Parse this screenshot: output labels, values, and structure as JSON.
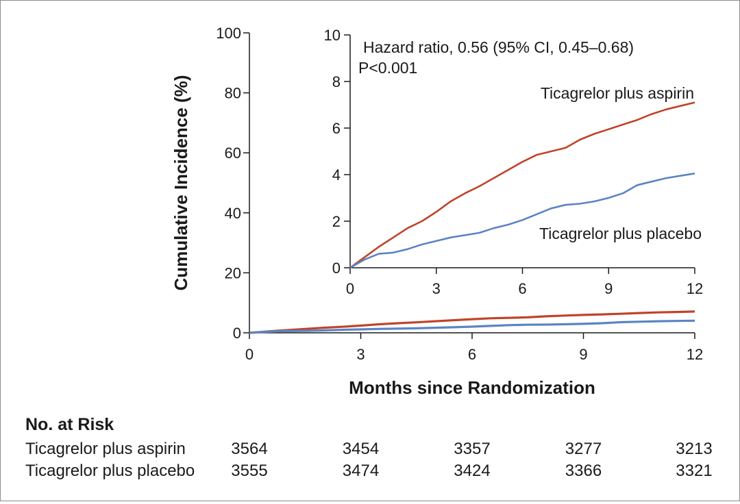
{
  "chart_data": [
    {
      "type": "line",
      "panel": "main",
      "xlabel": "Months since Randomization",
      "ylabel": "Cumulative Incidence (%)",
      "xlim": [
        0,
        12
      ],
      "ylim": [
        0,
        100
      ],
      "xticks": [
        0,
        3,
        6,
        9,
        12
      ],
      "yticks": [
        0,
        20,
        40,
        60,
        80,
        100
      ],
      "grid": false,
      "series": [
        {
          "name": "Ticagrelor plus aspirin",
          "color": "#c0432a",
          "x": [
            0,
            0.5,
            1,
            1.5,
            2,
            2.5,
            3,
            3.5,
            4,
            4.5,
            5,
            5.5,
            6,
            6.5,
            7,
            7.5,
            8,
            8.5,
            9,
            9.5,
            10,
            10.5,
            11,
            11.5,
            12
          ],
          "y": [
            0,
            0.45,
            0.9,
            1.3,
            1.7,
            2.0,
            2.4,
            2.85,
            3.2,
            3.5,
            3.85,
            4.2,
            4.55,
            4.85,
            5.0,
            5.15,
            5.5,
            5.75,
            5.95,
            6.15,
            6.35,
            6.6,
            6.8,
            6.95,
            7.1
          ]
        },
        {
          "name": "Ticagrelor plus placebo",
          "color": "#5b84c4",
          "x": [
            0,
            0.5,
            1,
            1.5,
            2,
            2.5,
            3,
            3.5,
            4,
            4.5,
            5,
            5.5,
            6,
            6.5,
            7,
            7.5,
            8,
            8.5,
            9,
            9.5,
            10,
            10.5,
            11,
            11.5,
            12
          ],
          "y": [
            0,
            0.35,
            0.6,
            0.65,
            0.8,
            1.0,
            1.15,
            1.3,
            1.4,
            1.5,
            1.7,
            1.85,
            2.05,
            2.3,
            2.55,
            2.7,
            2.75,
            2.85,
            3.0,
            3.2,
            3.55,
            3.7,
            3.85,
            3.95,
            4.05
          ]
        }
      ]
    },
    {
      "type": "line",
      "panel": "inset",
      "xlim": [
        0,
        12
      ],
      "ylim": [
        0,
        10
      ],
      "xticks": [
        0,
        3,
        6,
        9,
        12
      ],
      "yticks": [
        0,
        2,
        4,
        6,
        8,
        10
      ],
      "grid": false,
      "annotation_lines": [
        "Hazard ratio, 0.56 (95% CI, 0.45–0.68)",
        "P<0.001"
      ],
      "series_labels": [
        "Ticagrelor plus aspirin",
        "Ticagrelor plus placebo"
      ]
    }
  ],
  "risk_table": {
    "title": "No. at Risk",
    "rows": [
      {
        "label": "Ticagrelor plus aspirin",
        "values": [
          "3564",
          "3454",
          "3357",
          "3277",
          "3213"
        ]
      },
      {
        "label": "Ticagrelor plus placebo",
        "values": [
          "3555",
          "3474",
          "3424",
          "3366",
          "3321"
        ]
      }
    ]
  }
}
